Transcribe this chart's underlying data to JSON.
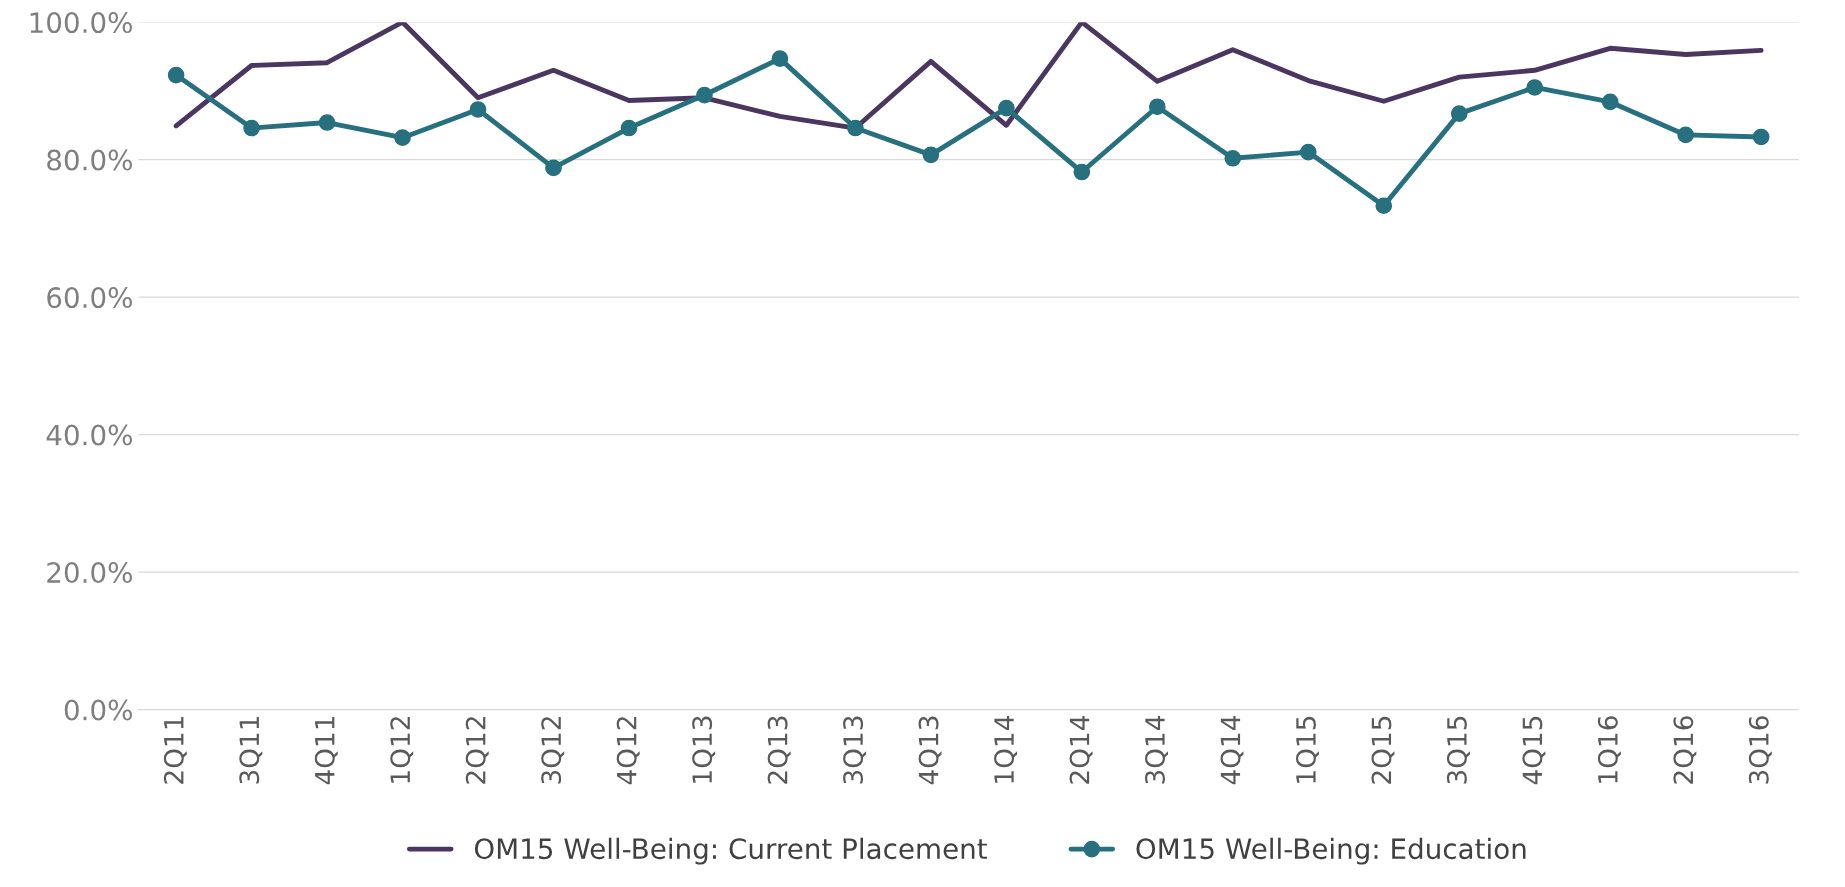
{
  "chart_data": {
    "type": "line",
    "categories": [
      "2Q11",
      "3Q11",
      "4Q11",
      "1Q12",
      "2Q12",
      "3Q12",
      "4Q12",
      "1Q13",
      "2Q13",
      "3Q13",
      "4Q13",
      "1Q14",
      "2Q14",
      "3Q14",
      "4Q14",
      "1Q15",
      "2Q15",
      "3Q15",
      "4Q15",
      "1Q16",
      "2Q16",
      "3Q16"
    ],
    "series": [
      {
        "name": "OM15 Well-Being: Current Placement",
        "color": "#4b3660",
        "marker": "none",
        "values": [
          84.9,
          93.7,
          94.1,
          100,
          89.0,
          93.0,
          88.6,
          89.0,
          86.3,
          84.6,
          94.3,
          85.0,
          100,
          91.4,
          96.0,
          91.5,
          88.5,
          92.0,
          93.0,
          96.2,
          95.3,
          95.9
        ]
      },
      {
        "name": "OM15 Well-Being: Education",
        "color": "#27707f",
        "marker": "circle",
        "values": [
          92.3,
          84.6,
          85.4,
          83.2,
          87.3,
          78.8,
          84.6,
          89.4,
          94.7,
          84.6,
          80.7,
          87.5,
          78.2,
          87.7,
          80.2,
          81.1,
          73.3,
          86.7,
          90.5,
          88.4,
          83.6,
          83.3
        ]
      }
    ],
    "ylim": [
      0,
      100
    ],
    "yticks": [
      {
        "value": 0,
        "label": "0.0%"
      },
      {
        "value": 20,
        "label": "20.0%"
      },
      {
        "value": 40,
        "label": "40.0%"
      },
      {
        "value": 60,
        "label": "60.0%"
      },
      {
        "value": 80,
        "label": "80.0%"
      },
      {
        "value": 100,
        "label": "100.0%"
      }
    ],
    "grid": "y",
    "legend": "bottom"
  }
}
